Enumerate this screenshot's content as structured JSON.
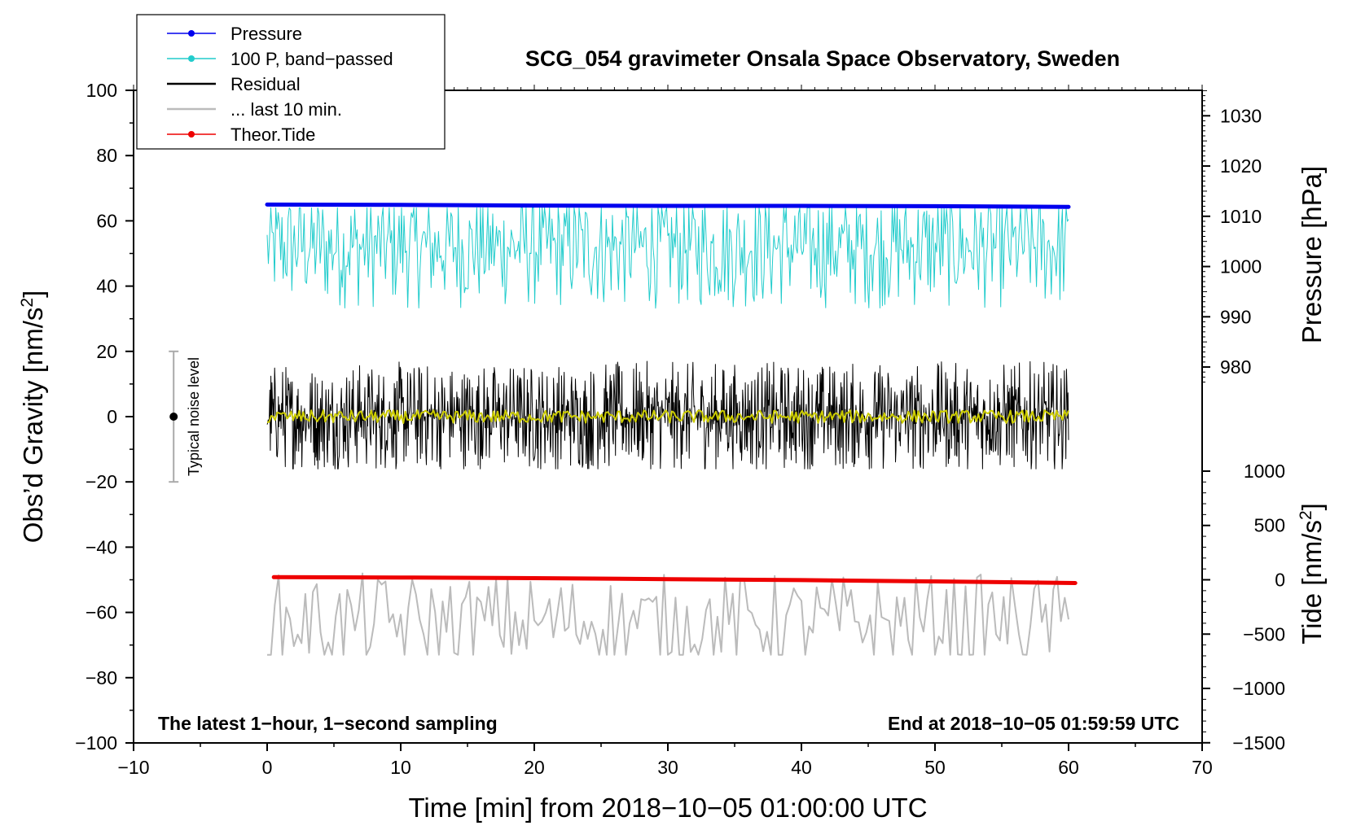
{
  "chart_data": {
    "type": "line",
    "title": "SCG_054 gravimeter Onsala Space Observatory, Sweden",
    "xlabel": "Time [min] from 2018−10−05 01:00:00 UTC",
    "ylabel_left": "Obs’d Gravity [nm/s",
    "ylabel_left_sup": "2",
    "ylabel_left_end": "]",
    "ylabel_right_pressure": "Pressure [hPa]",
    "ylabel_right_tide": "Tide [nm/s",
    "ylabel_right_tide_sup": "2",
    "ylabel_right_tide_end": "]",
    "xlim": [
      -10,
      70
    ],
    "ylim": [
      -100,
      100
    ],
    "x_ticks": [
      -10,
      0,
      10,
      20,
      30,
      40,
      50,
      60,
      70
    ],
    "x_tick_labels": [
      "−10",
      "0",
      "10",
      "20",
      "30",
      "40",
      "50",
      "60",
      "70"
    ],
    "y_ticks": [
      -100,
      -80,
      -60,
      -40,
      -20,
      0,
      20,
      40,
      60,
      80,
      100
    ],
    "y_tick_labels": [
      "−100",
      "−80",
      "−60",
      "−40",
      "−20",
      "0",
      "20",
      "40",
      "60",
      "80",
      "100"
    ],
    "pressure_axis": {
      "ticks": [
        980,
        990,
        1000,
        1010,
        1020,
        1030
      ],
      "tick_labels": [
        "980",
        "990",
        "1000",
        "1010",
        "1020",
        "1030"
      ],
      "gravity_at_1000": 46,
      "gravity_per_hpa": 1.54
    },
    "tide_axis": {
      "ticks": [
        -1500,
        -1000,
        -500,
        0,
        500,
        1000
      ],
      "tick_labels": [
        "−1500",
        "−1000",
        "−500",
        "0",
        "500",
        "1000"
      ],
      "gravity_at_0": -50,
      "gravity_per_unit": 0.0333
    },
    "series": [
      {
        "name": "Pressure",
        "color": "#0000ee",
        "style": "thick line",
        "x": [
          0,
          10,
          20,
          30,
          40,
          50,
          60
        ],
        "y": [
          65.0,
          64.9,
          64.7,
          64.6,
          64.6,
          64.5,
          64.3
        ]
      },
      {
        "name": "100 P, band−passed",
        "color": "#22cccc",
        "style": "oscillating",
        "x_range": [
          0,
          60
        ],
        "mean": 52,
        "min": 33,
        "max": 64
      },
      {
        "name": "Residual",
        "color": "#000000",
        "style": "oscillating",
        "x_range": [
          0,
          60
        ],
        "mean": 0,
        "min": -16,
        "max": 17
      },
      {
        "name": "... last 10 min.",
        "color": "#bbbbbb",
        "style": "oscillating",
        "x_range": [
          0,
          60
        ],
        "mean": -63,
        "min": -73,
        "max": -48
      },
      {
        "name": "Theor.Tide",
        "color": "#ee0000",
        "style": "thick line",
        "x": [
          0.5,
          10,
          20,
          30,
          40,
          50,
          60.5
        ],
        "y": [
          -49.2,
          -49.3,
          -49.5,
          -49.8,
          -50.1,
          -50.5,
          -51.0
        ]
      },
      {
        "name": "smoothed residual",
        "color": "#cccc00",
        "style": "oscillating",
        "x_range": [
          0,
          60
        ],
        "mean": 0,
        "min": -2,
        "max": 2
      }
    ],
    "legend": {
      "placement": "top-left",
      "entries": [
        {
          "label": "Pressure",
          "color": "#0000ee",
          "marker": true
        },
        {
          "label": "100 P, band−passed",
          "color": "#22cccc",
          "marker": true
        },
        {
          "label": "Residual",
          "color": "#000000",
          "marker": false
        },
        {
          "label": "... last 10 min.",
          "color": "#bbbbbb",
          "marker": false
        },
        {
          "label": "Theor.Tide",
          "color": "#ee0000",
          "marker": true
        }
      ]
    },
    "noise_level": {
      "label": "Typical noise level",
      "x": -7,
      "y": 0,
      "low": -20,
      "high": 20,
      "color": "#aaaaaa"
    },
    "annotations": {
      "left": "The latest 1−hour, 1−second sampling",
      "right": "End at 2018−10−05 01:59:59 UTC"
    }
  }
}
